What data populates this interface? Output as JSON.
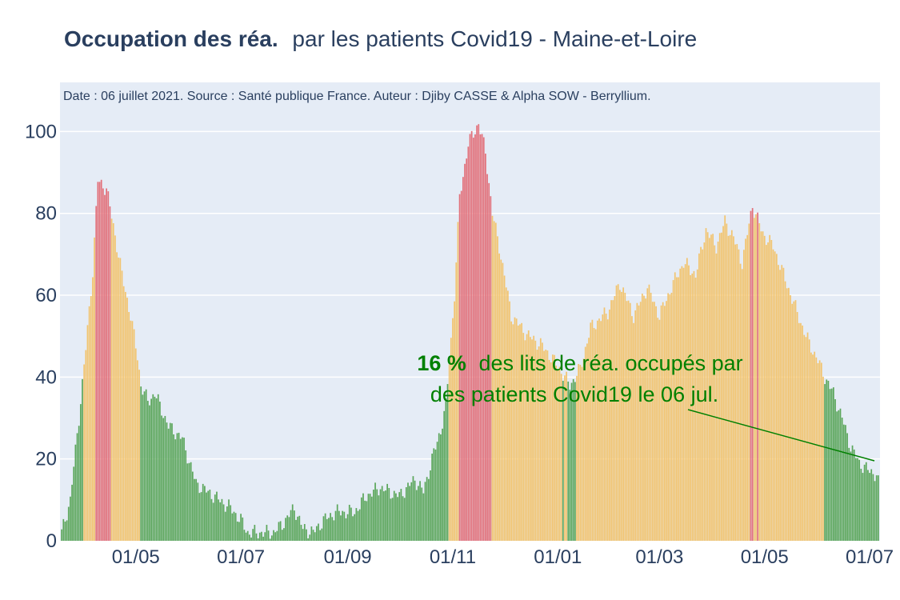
{
  "colors": {
    "plot_bg": "#e5ecf6",
    "grid": "#ffffff",
    "text": "#2a3f5f",
    "green": "#5ba65b",
    "orange": "#f2c46f",
    "red": "#e2707a",
    "annotation": "#008000"
  },
  "title": {
    "bold": "Occupation des réa.",
    "rest": "par les patients Covid19 - Maine-et-Loire"
  },
  "source_note": "Date : 06 juillet 2021. Source : Santé publique France. Auteur : Djiby CASSE & Alpha SOW - Berryllium.",
  "annotation": {
    "value": "16  %",
    "line1_rest": "des lits de réa. occupés par",
    "line2": "des patients Covid19 le 06 jul."
  },
  "chart_data": {
    "type": "bar",
    "unit": "% des lits de réa. occupés",
    "x_start": "2020-03-19",
    "x_end": "2021-07-06",
    "ylim": [
      0,
      112
    ],
    "yticks": [
      0,
      20,
      40,
      60,
      80,
      100
    ],
    "xticks": [
      {
        "date": "2020-05-01",
        "label": "01/05"
      },
      {
        "date": "2020-07-01",
        "label": "01/07"
      },
      {
        "date": "2020-09-01",
        "label": "01/09"
      },
      {
        "date": "2020-11-01",
        "label": "01/11"
      },
      {
        "date": "2021-01-01",
        "label": "01/01"
      },
      {
        "date": "2021-03-01",
        "label": "01/03"
      },
      {
        "date": "2021-05-01",
        "label": "01/05"
      },
      {
        "date": "2021-07-01",
        "label": "01/07"
      }
    ],
    "color_thresholds": {
      "green_below": 40,
      "orange_below": 80,
      "red_from": 80
    },
    "grid": true,
    "legend": "none",
    "anchors": [
      [
        "2020-03-19",
        2
      ],
      [
        "2020-03-24",
        10
      ],
      [
        "2020-03-29",
        30
      ],
      [
        "2020-04-02",
        47
      ],
      [
        "2020-04-06",
        66
      ],
      [
        "2020-04-09",
        88
      ],
      [
        "2020-04-14",
        86
      ],
      [
        "2020-04-18",
        77
      ],
      [
        "2020-04-23",
        65
      ],
      [
        "2020-04-28",
        55
      ],
      [
        "2020-05-02",
        45
      ],
      [
        "2020-05-04",
        38
      ],
      [
        "2020-05-08",
        34
      ],
      [
        "2020-05-12",
        36
      ],
      [
        "2020-05-20",
        28
      ],
      [
        "2020-05-28",
        25
      ],
      [
        "2020-06-05",
        14
      ],
      [
        "2020-06-15",
        11
      ],
      [
        "2020-06-25",
        8
      ],
      [
        "2020-07-01",
        5
      ],
      [
        "2020-07-05",
        2
      ],
      [
        "2020-07-20",
        2
      ],
      [
        "2020-07-25",
        4
      ],
      [
        "2020-08-01",
        8
      ],
      [
        "2020-08-06",
        3
      ],
      [
        "2020-08-12",
        2
      ],
      [
        "2020-08-18",
        5
      ],
      [
        "2020-08-25",
        7
      ],
      [
        "2020-09-05",
        7
      ],
      [
        "2020-09-12",
        11
      ],
      [
        "2020-09-20",
        13
      ],
      [
        "2020-10-01",
        11
      ],
      [
        "2020-10-10",
        15
      ],
      [
        "2020-10-15",
        12
      ],
      [
        "2020-10-20",
        20
      ],
      [
        "2020-10-25",
        27
      ],
      [
        "2020-10-28",
        33
      ],
      [
        "2020-11-02",
        60
      ],
      [
        "2020-11-05",
        84
      ],
      [
        "2020-11-10",
        97
      ],
      [
        "2020-11-16",
        102
      ],
      [
        "2020-11-20",
        95
      ],
      [
        "2020-11-24",
        80
      ],
      [
        "2020-11-28",
        72
      ],
      [
        "2020-12-05",
        55
      ],
      [
        "2020-12-15",
        50
      ],
      [
        "2020-12-22",
        48
      ],
      [
        "2020-12-28",
        45
      ],
      [
        "2021-01-02",
        42
      ],
      [
        "2021-01-08",
        38
      ],
      [
        "2021-01-14",
        42
      ],
      [
        "2021-01-20",
        52
      ],
      [
        "2021-01-30",
        56
      ],
      [
        "2021-02-06",
        63
      ],
      [
        "2021-02-14",
        55
      ],
      [
        "2021-02-22",
        62
      ],
      [
        "2021-03-01",
        55
      ],
      [
        "2021-03-08",
        62
      ],
      [
        "2021-03-15",
        68
      ],
      [
        "2021-03-22",
        65
      ],
      [
        "2021-03-28",
        76
      ],
      [
        "2021-04-03",
        72
      ],
      [
        "2021-04-08",
        78
      ],
      [
        "2021-04-13",
        74
      ],
      [
        "2021-04-18",
        68
      ],
      [
        "2021-04-24",
        82
      ],
      [
        "2021-04-30",
        75
      ],
      [
        "2021-05-06",
        72
      ],
      [
        "2021-05-12",
        65
      ],
      [
        "2021-05-18",
        58
      ],
      [
        "2021-05-25",
        50
      ],
      [
        "2021-06-01",
        44
      ],
      [
        "2021-06-05",
        40
      ],
      [
        "2021-06-10",
        36
      ],
      [
        "2021-06-15",
        30
      ],
      [
        "2021-06-20",
        23
      ],
      [
        "2021-06-25",
        19
      ],
      [
        "2021-07-01",
        17
      ],
      [
        "2021-07-06",
        16
      ]
    ]
  }
}
